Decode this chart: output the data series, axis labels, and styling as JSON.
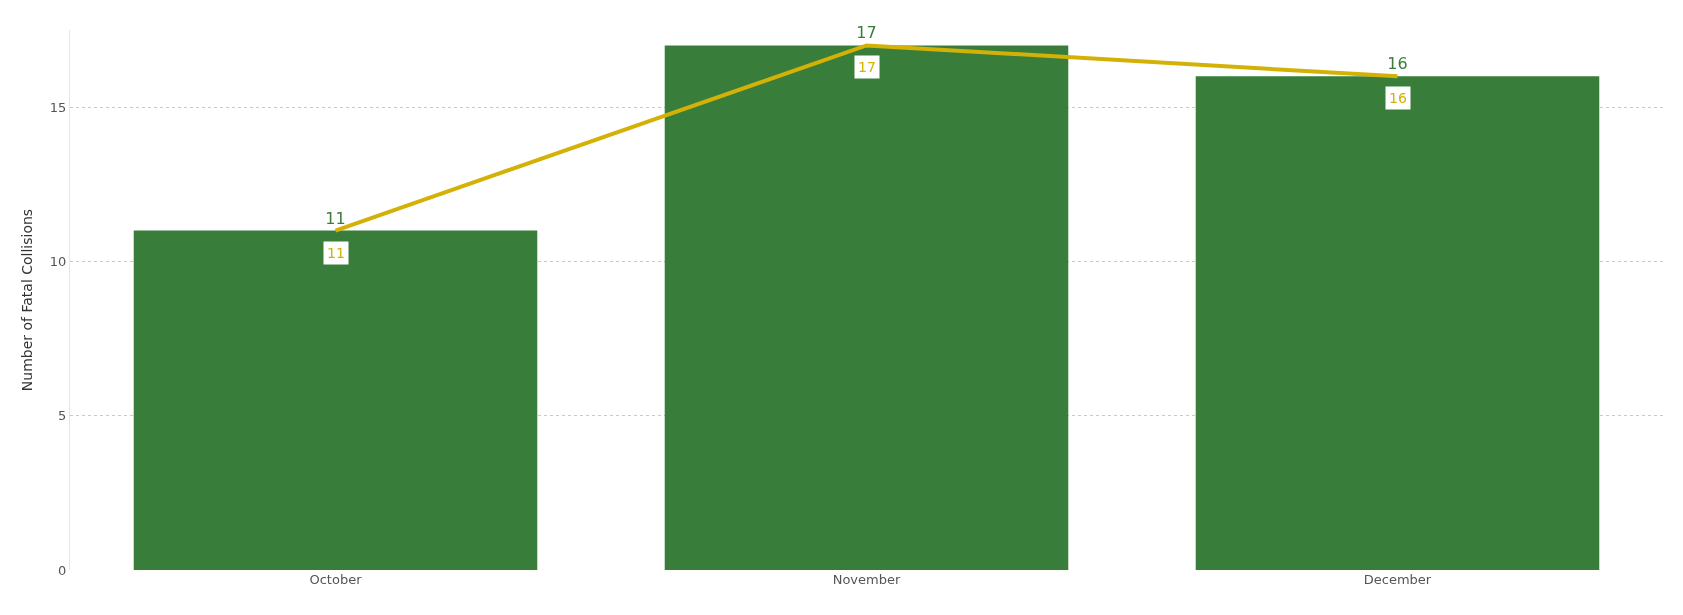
{
  "chart_data": {
    "type": "bar",
    "ylabel": "Number of Fatal Collisions",
    "categories": [
      "October",
      "November",
      "December"
    ],
    "series": [
      {
        "color": "#387e3a",
        "values": [
          11,
          17,
          16
        ]
      },
      {
        "type": "line",
        "color": "#d4b106",
        "values": [
          11,
          17,
          16
        ]
      }
    ],
    "ylim": [
      0,
      17.5
    ],
    "yticks": [
      0,
      5,
      10,
      15
    ],
    "grid": "y",
    "legend": false,
    "data_labels": true,
    "marker": "none",
    "line_style": "solid"
  }
}
